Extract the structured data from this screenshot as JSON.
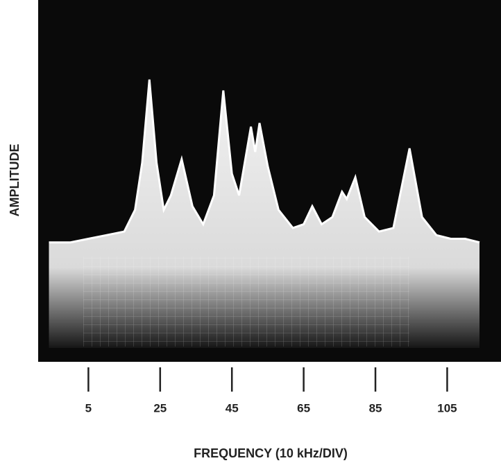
{
  "chart_data": {
    "type": "area",
    "x_label": "FREQUENCY (10 kHz/DIV)",
    "y_label": "AMPLITUDE",
    "x": [
      -6,
      0,
      5,
      10,
      15,
      18,
      20,
      22,
      24,
      26,
      28,
      31,
      34,
      37,
      40,
      42.6,
      45,
      47,
      50.3,
      51.5,
      52.7,
      55,
      58,
      62,
      65,
      67.4,
      70,
      73,
      75.7,
      77,
      79.4,
      82,
      86,
      90,
      94.5,
      98,
      102,
      106,
      110,
      114
    ],
    "values": [
      3.3,
      3.3,
      3.4,
      3.5,
      3.6,
      4.2,
      5.5,
      7.8,
      5.5,
      4.2,
      4.6,
      5.6,
      4.3,
      3.8,
      4.6,
      7.5,
      5.2,
      4.6,
      6.5,
      5.8,
      6.6,
      5.4,
      4.2,
      3.7,
      3.8,
      4.3,
      3.8,
      4.0,
      4.7,
      4.5,
      5.1,
      4.0,
      3.6,
      3.7,
      5.9,
      4.0,
      3.5,
      3.4,
      3.4,
      3.3
    ],
    "color": "#ffffff",
    "background": "#0a0a0a",
    "xlim": [
      -9,
      120
    ],
    "ylim": [
      0,
      10
    ],
    "xticks": [
      5,
      25,
      45,
      65,
      85,
      105
    ]
  }
}
